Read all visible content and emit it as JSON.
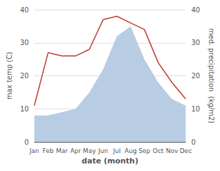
{
  "chart_data": {
    "type": "line",
    "xlabel": "date (month)",
    "ylabel": "max temp (C)",
    "y2label": "med. precipitation  (kg/m2)",
    "categories": [
      "Jan",
      "Feb",
      "Mar",
      "Apr",
      "May",
      "Jun",
      "Jul",
      "Aug",
      "Sep",
      "Oct",
      "Nov",
      "Dec"
    ],
    "series": [
      {
        "type": "area",
        "color": "#b8cce4",
        "values": [
          8,
          8,
          9,
          10,
          15,
          22,
          32,
          35,
          25,
          18,
          13,
          11
        ]
      },
      {
        "type": "line",
        "color": "#c0392b",
        "values": [
          11,
          27,
          26,
          26,
          28,
          37,
          38,
          36,
          34,
          24,
          18,
          13
        ]
      }
    ],
    "ylim": [
      0,
      40
    ],
    "yticks": [
      0,
      10,
      20,
      30,
      40
    ],
    "y2lim": [
      0,
      40
    ],
    "y2ticks": [
      0,
      10,
      20,
      30,
      40
    ],
    "grid": true
  }
}
